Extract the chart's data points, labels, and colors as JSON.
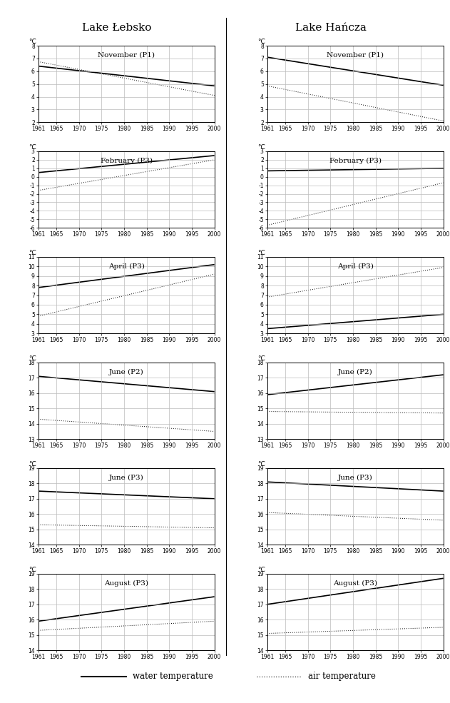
{
  "col_titles": [
    "Lake Łebsko",
    "Lake Hańcza"
  ],
  "x_start": 1961,
  "x_end": 2000,
  "x_ticks": [
    1961,
    1965,
    1970,
    1975,
    1980,
    1985,
    1990,
    1995,
    2000
  ],
  "panels_left": [
    {
      "title": "November (P1)",
      "ylim": [
        2,
        8
      ],
      "yticks": [
        2,
        3,
        4,
        5,
        6,
        7,
        8
      ],
      "water": [
        6.4,
        4.85
      ],
      "air": [
        6.75,
        4.1
      ]
    },
    {
      "title": "February (P3)",
      "ylim": [
        -6,
        3
      ],
      "yticks": [
        -6,
        -5,
        -4,
        -3,
        -2,
        -1,
        0,
        1,
        2,
        3
      ],
      "water": [
        0.5,
        2.5
      ],
      "air": [
        -1.6,
        2.0
      ]
    },
    {
      "title": "April (P3)",
      "ylim": [
        3,
        11
      ],
      "yticks": [
        3,
        4,
        5,
        6,
        7,
        8,
        9,
        10,
        11
      ],
      "water": [
        7.8,
        10.2
      ],
      "air": [
        4.8,
        9.2
      ]
    },
    {
      "title": "June (P2)",
      "ylim": [
        13,
        18
      ],
      "yticks": [
        13,
        14,
        15,
        16,
        17,
        18
      ],
      "water": [
        17.1,
        16.1
      ],
      "air": [
        14.3,
        13.5
      ]
    },
    {
      "title": "June (P3)",
      "ylim": [
        14,
        19
      ],
      "yticks": [
        14,
        15,
        16,
        17,
        18,
        19
      ],
      "water": [
        17.5,
        17.0
      ],
      "air": [
        15.3,
        15.1
      ]
    },
    {
      "title": "August (P3)",
      "ylim": [
        14,
        19
      ],
      "yticks": [
        14,
        15,
        16,
        17,
        18,
        19
      ],
      "water": [
        15.9,
        17.5
      ],
      "air": [
        15.3,
        15.9
      ]
    }
  ],
  "panels_right": [
    {
      "title": "November (P1)",
      "ylim": [
        2,
        8
      ],
      "yticks": [
        2,
        3,
        4,
        5,
        6,
        7,
        8
      ],
      "water": [
        7.1,
        4.9
      ],
      "air": [
        4.85,
        2.1
      ]
    },
    {
      "title": "February (P3)",
      "ylim": [
        -6,
        3
      ],
      "yticks": [
        -6,
        -5,
        -4,
        -3,
        -2,
        -1,
        0,
        1,
        2,
        3
      ],
      "water": [
        0.7,
        1.0
      ],
      "air": [
        -5.7,
        -0.7
      ]
    },
    {
      "title": "April (P3)",
      "ylim": [
        3,
        11
      ],
      "yticks": [
        3,
        4,
        5,
        6,
        7,
        8,
        9,
        10,
        11
      ],
      "water": [
        3.5,
        5.0
      ],
      "air": [
        6.8,
        9.9
      ]
    },
    {
      "title": "June (P2)",
      "ylim": [
        13,
        18
      ],
      "yticks": [
        13,
        14,
        15,
        16,
        17,
        18
      ],
      "water": [
        15.9,
        17.2
      ],
      "air": [
        14.8,
        14.7
      ]
    },
    {
      "title": "June (P3)",
      "ylim": [
        14,
        19
      ],
      "yticks": [
        14,
        15,
        16,
        17,
        18,
        19
      ],
      "water": [
        18.1,
        17.5
      ],
      "air": [
        16.1,
        15.6
      ]
    },
    {
      "title": "August (P3)",
      "ylim": [
        14,
        19
      ],
      "yticks": [
        14,
        15,
        16,
        17,
        18,
        19
      ],
      "water": [
        17.0,
        18.7
      ],
      "air": [
        15.1,
        15.5
      ]
    }
  ],
  "legend_water": "water temperature",
  "legend_air": "air temperature",
  "ylabel_unit": "°C",
  "line_color": "black",
  "water_lw": 1.2,
  "air_lw": 0.7,
  "grid_color": "#bbbbbb",
  "bg_color": "white",
  "tick_fontsize": 5.5,
  "title_fontsize": 7.5,
  "col_title_fontsize": 11,
  "ylabel_fontsize": 6.5
}
